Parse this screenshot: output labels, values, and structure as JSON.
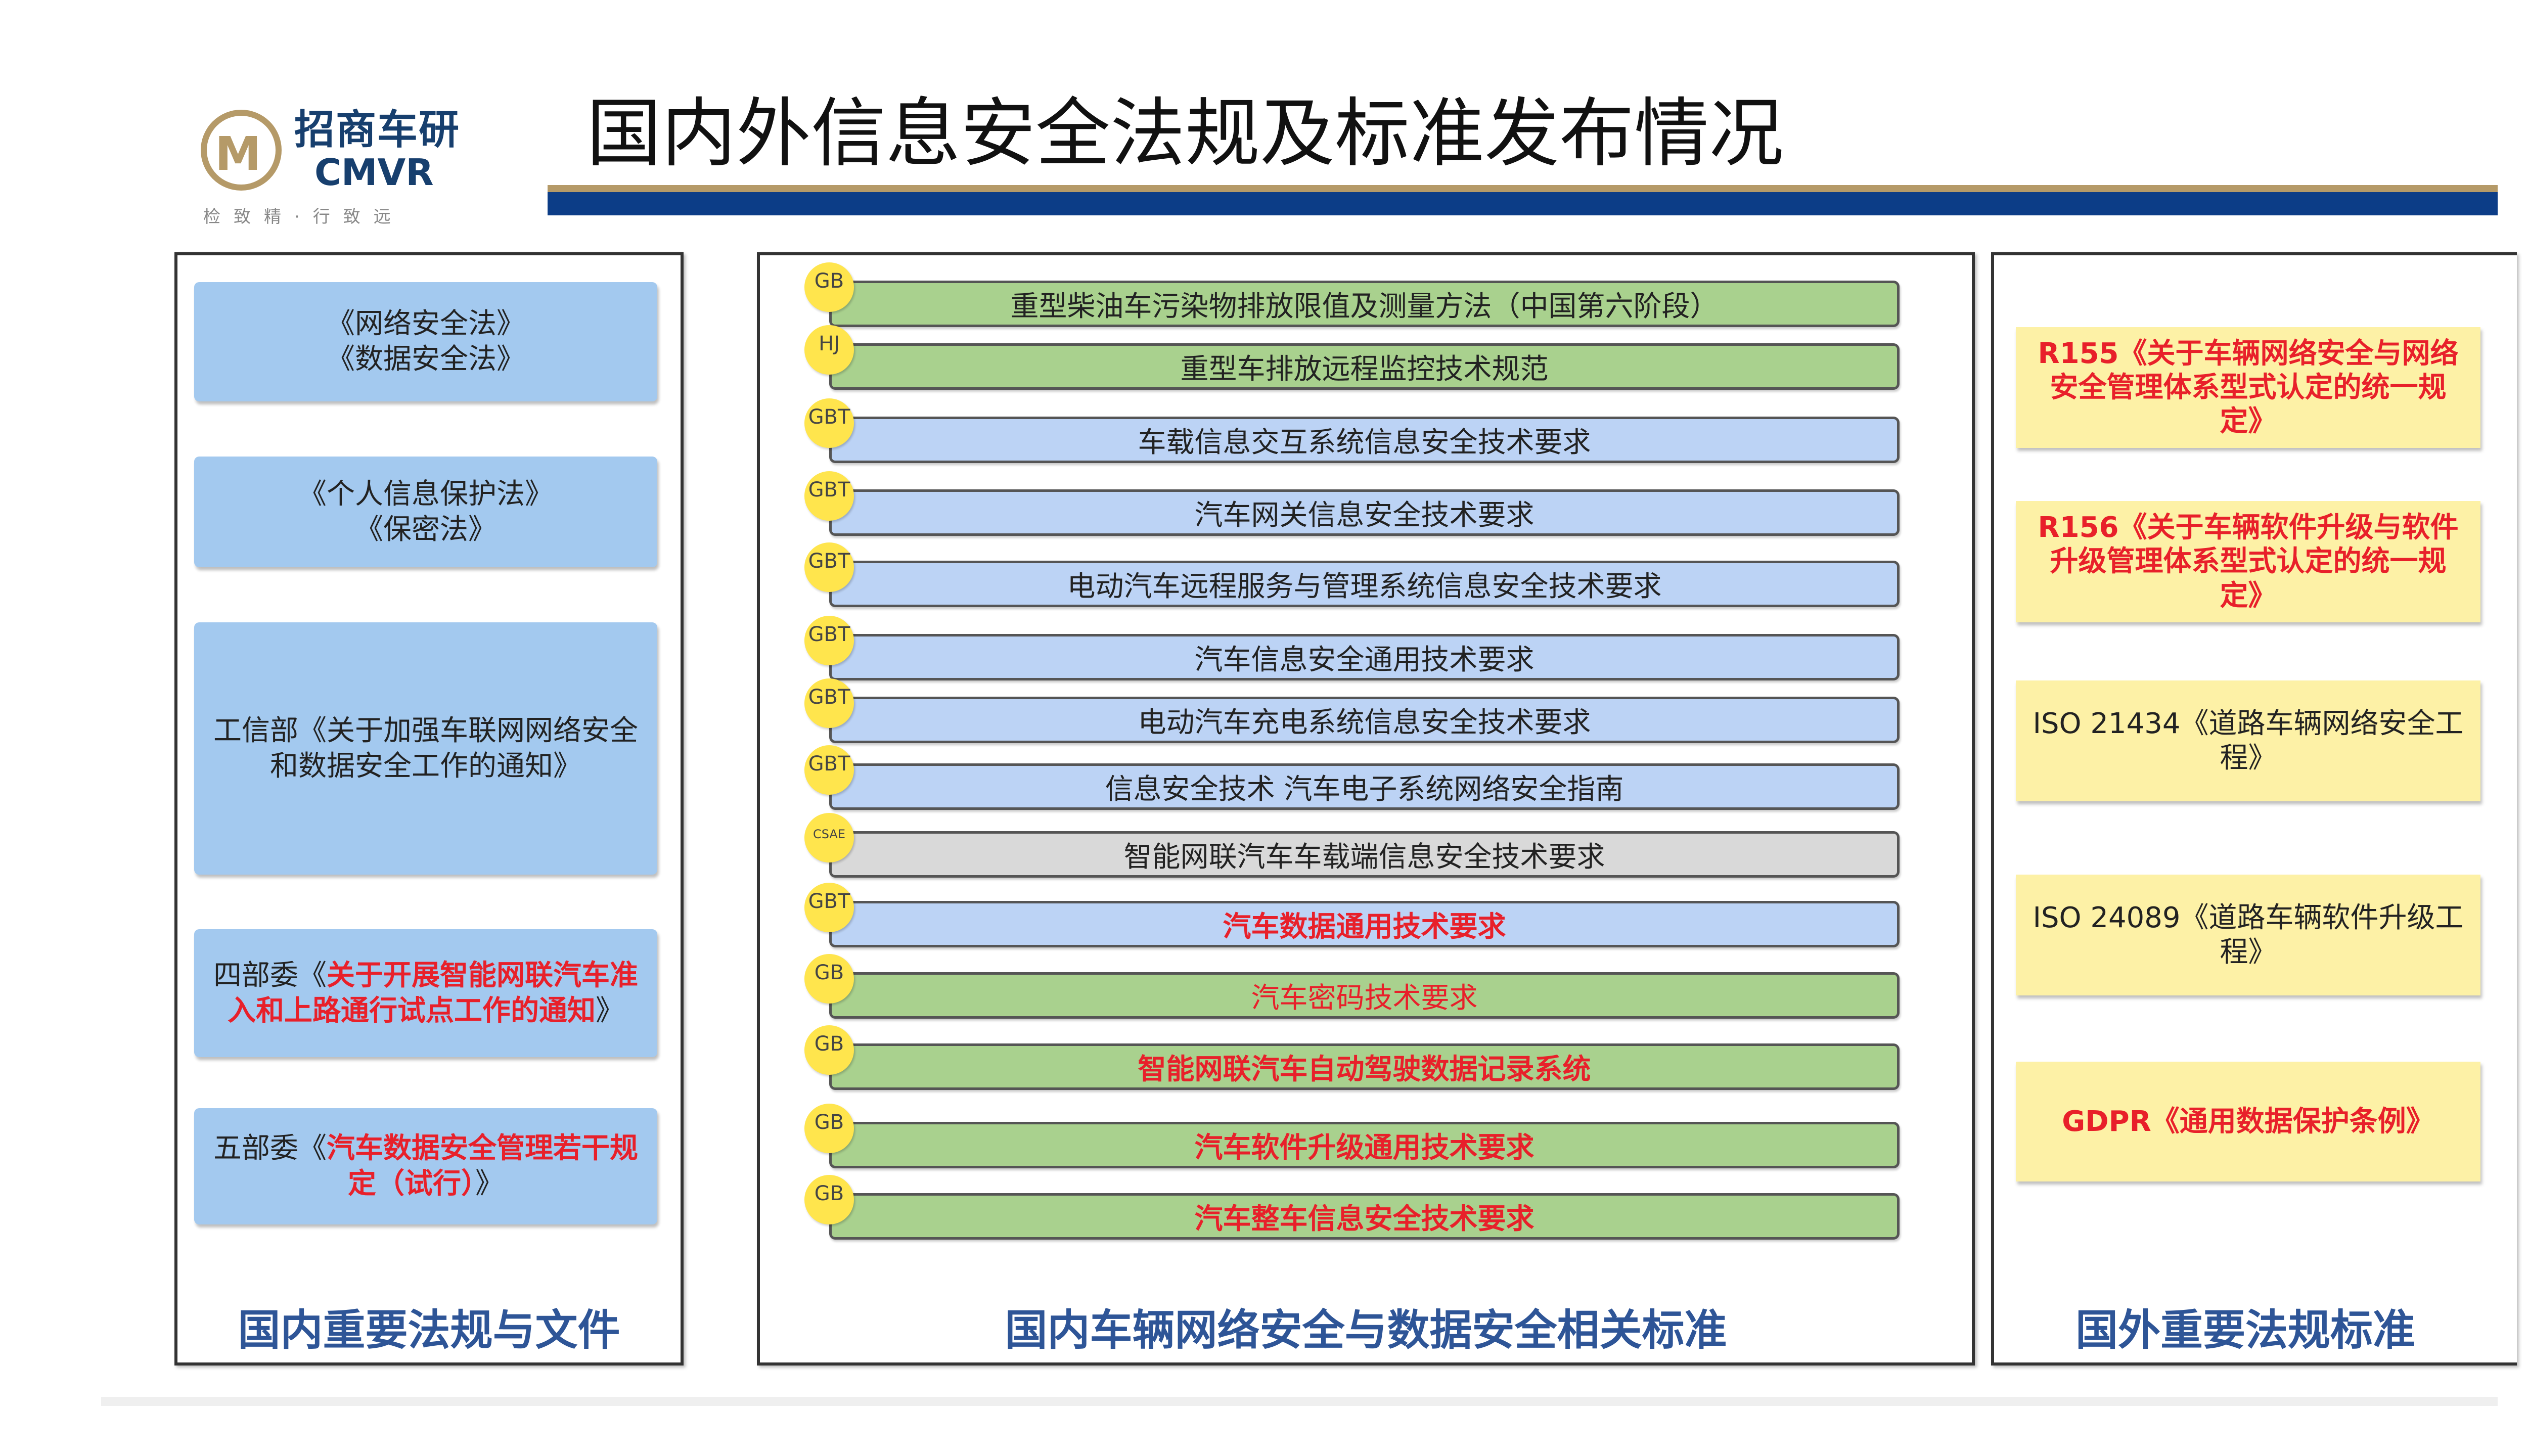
{
  "header": {
    "logo": {
      "cn": "招商车研",
      "en": "CMVR",
      "slogan": "检致精·行致远"
    },
    "title": "国内外信息安全法规及标准发布情况"
  },
  "colors": {
    "green": "#a9d18e",
    "blue": "#bcd3f5",
    "gray": "#d9d9d9",
    "red": "#e8202a",
    "badge": "#ffe54d",
    "left_box": "#a3c9ef",
    "right_box": "#fdf1a6",
    "footer": "#2e5597"
  },
  "left_panel": {
    "footer": "国内重要法规与文件",
    "items": [
      {
        "line1": "《网络安全法》",
        "line2": "《数据安全法》"
      },
      {
        "line1": "《个人信息保护法》",
        "line2": "《保密法》"
      },
      {
        "text": "工信部《关于加强车联网网络安全和数据安全工作的通知》"
      },
      {
        "prefix": "四部委《",
        "red": "关于开展智能网联汽车准入和上路通行试点工作的通知",
        "suffix": "》"
      },
      {
        "prefix": "五部委《",
        "red": "汽车数据安全管理若干规定（试行）",
        "suffix": "》"
      }
    ]
  },
  "middle_panel": {
    "footer": "国内车辆网络安全与数据安全相关标准",
    "rows": [
      {
        "badge": "GB",
        "text": "重型柴油车污染物排放限值及测量方法（中国第六阶段）",
        "fill": "green",
        "red": false
      },
      {
        "badge": "HJ",
        "text": "重型车排放远程监控技术规范",
        "fill": "green",
        "red": false
      },
      {
        "badge": "GBT",
        "text": "车载信息交互系统信息安全技术要求",
        "fill": "blue",
        "red": false
      },
      {
        "badge": "GBT",
        "text": "汽车网关信息安全技术要求",
        "fill": "blue",
        "red": false
      },
      {
        "badge": "GBT",
        "text": "电动汽车远程服务与管理系统信息安全技术要求",
        "fill": "blue",
        "red": false
      },
      {
        "badge": "GBT",
        "text": "汽车信息安全通用技术要求",
        "fill": "blue",
        "red": false
      },
      {
        "badge": "GBT",
        "text": "电动汽车充电系统信息安全技术要求",
        "fill": "blue",
        "red": false
      },
      {
        "badge": "GBT",
        "text": "信息安全技术 汽车电子系统网络安全指南",
        "fill": "blue",
        "red": false
      },
      {
        "badge": "CSAE",
        "text": "智能网联汽车车载端信息安全技术要求",
        "fill": "gray",
        "red": false
      },
      {
        "badge": "GBT",
        "text": "汽车数据通用技术要求",
        "fill": "blue",
        "red": true
      },
      {
        "badge": "GB",
        "text": "汽车密码技术要求",
        "fill": "green",
        "red": true,
        "light": true
      },
      {
        "badge": "GB",
        "text": "智能网联汽车自动驾驶数据记录系统",
        "fill": "green",
        "red": true
      },
      {
        "badge": "GB",
        "text": "汽车软件升级通用技术要求",
        "fill": "green",
        "red": true
      },
      {
        "badge": "GB",
        "text": "汽车整车信息安全技术要求",
        "fill": "green",
        "red": true
      }
    ]
  },
  "right_panel": {
    "footer": "国外重要法规标准",
    "items": [
      {
        "text": "R155《关于车辆网络安全与网络安全管理体系型式认定的统一规定》",
        "red": true
      },
      {
        "text": "R156《关于车辆软件升级与软件升级管理体系型式认定的统一规定》",
        "red": true
      },
      {
        "text": "ISO 21434《道路车辆网络安全工程》",
        "red": false
      },
      {
        "text": "ISO 24089《道路车辆软件升级工程》",
        "red": false
      },
      {
        "text": "GDPR《通用数据保护条例》",
        "red": true
      }
    ]
  }
}
